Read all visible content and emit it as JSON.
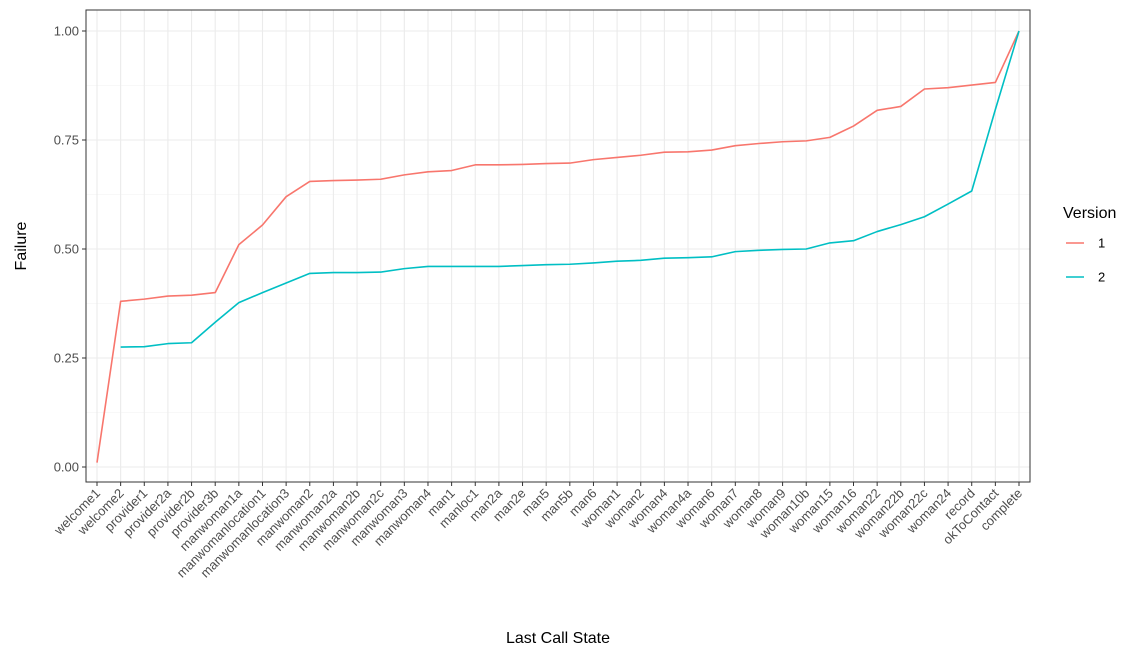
{
  "chart_data": {
    "type": "line",
    "xlabel": "Last Call State",
    "ylabel": "Failure",
    "ylim": [
      0,
      1
    ],
    "yticks": [
      "0.00",
      "0.25",
      "0.50",
      "0.75",
      "1.00"
    ],
    "grid": true,
    "legend_position": "right",
    "legend_title": "Version",
    "categories": [
      "welcome1",
      "welcome2",
      "provider1",
      "provider2a",
      "provider2b",
      "provider3b",
      "manwoman1a",
      "manwomanlocation1",
      "manwomanlocation3",
      "manwoman2",
      "manwoman2a",
      "manwoman2b",
      "manwoman2c",
      "manwoman3",
      "manwoman4",
      "man1",
      "manloc1",
      "man2a",
      "man2e",
      "man5",
      "man5b",
      "man6",
      "woman1",
      "woman2",
      "woman4",
      "woman4a",
      "woman6",
      "woman7",
      "woman8",
      "woman9",
      "woman10b",
      "woman15",
      "woman16",
      "woman22",
      "woman22b",
      "woman22c",
      "woman24",
      "record",
      "okToContact",
      "complete"
    ],
    "series": [
      {
        "name": "1",
        "color": "#F8766D",
        "values": [
          0.01,
          0.38,
          0.385,
          0.392,
          0.394,
          0.4,
          0.51,
          0.555,
          0.62,
          0.655,
          0.657,
          0.658,
          0.66,
          0.67,
          0.677,
          0.68,
          0.693,
          0.693,
          0.694,
          0.696,
          0.697,
          0.705,
          0.71,
          0.715,
          0.722,
          0.723,
          0.727,
          0.737,
          0.742,
          0.746,
          0.748,
          0.756,
          0.782,
          0.818,
          0.827,
          0.867,
          0.87,
          0.876,
          0.882,
          1.0
        ]
      },
      {
        "name": "2",
        "color": "#00BFC4",
        "values": [
          null,
          0.275,
          0.276,
          0.283,
          0.285,
          0.332,
          0.377,
          0.4,
          0.422,
          0.444,
          0.446,
          0.446,
          0.447,
          0.455,
          0.46,
          0.46,
          0.46,
          0.46,
          0.462,
          0.464,
          0.465,
          0.468,
          0.472,
          0.474,
          0.479,
          0.48,
          0.482,
          0.494,
          0.497,
          0.499,
          0.5,
          0.514,
          0.519,
          0.54,
          0.556,
          0.574,
          0.603,
          0.633,
          0.82,
          1.0
        ]
      }
    ]
  }
}
